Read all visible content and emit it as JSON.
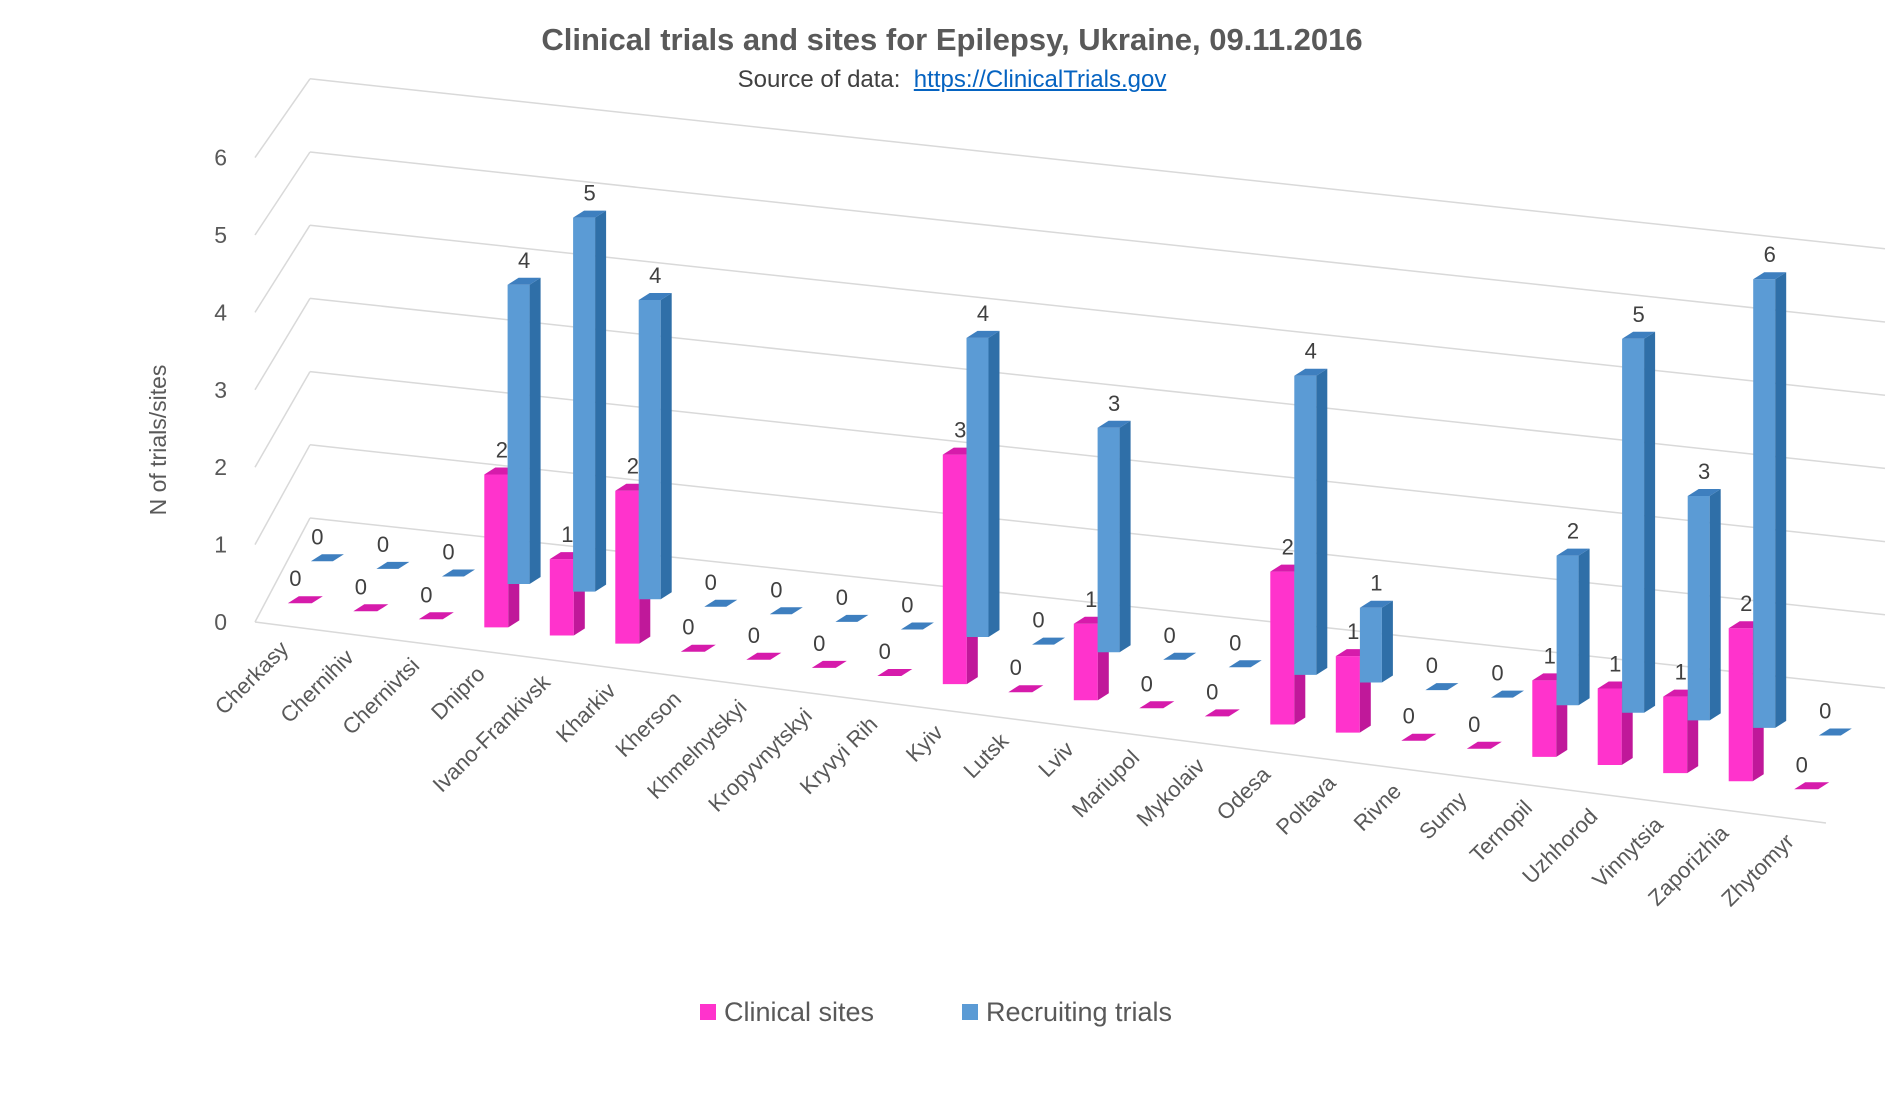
{
  "chart_data": {
    "type": "bar",
    "subtype": "3d-clustered-column",
    "title": "Clinical trials and sites for Epilepsy, Ukraine, 09.11.2016",
    "subtitle_prefix": "Source of data:",
    "subtitle_link": "https://ClinicalTrials.gov",
    "ylabel": "N of trials/sites",
    "ylim": [
      0,
      6
    ],
    "yticks": [
      "0",
      "1",
      "2",
      "3",
      "4",
      "5",
      "6"
    ],
    "grid": true,
    "legend_position": "bottom",
    "categories": [
      "Cherkasy",
      "Chernihiv",
      "Chernivtsi",
      "Dnipro",
      "Ivano-Frankivsk",
      "Kharkiv",
      "Kherson",
      "Khmelnytskyi",
      "Kropyvnytskyi",
      "Kryvyi Rih",
      "Kyiv",
      "Lutsk",
      "Lviv",
      "Mariupol",
      "Mykolaiv",
      "Odesa",
      "Poltava",
      "Rivne",
      "Sumy",
      "Ternopil",
      "Uzhhorod",
      "Vinnytsia",
      "Zaporizhia",
      "Zhytomyr"
    ],
    "series": [
      {
        "name": "Clinical sites",
        "color": "#ff33cc",
        "values": [
          0,
          0,
          0,
          2,
          1,
          2,
          0,
          0,
          0,
          0,
          3,
          0,
          1,
          0,
          0,
          2,
          1,
          0,
          0,
          1,
          1,
          1,
          2,
          0
        ]
      },
      {
        "name": "Recruiting trials",
        "color": "#5b9bd5",
        "values": [
          0,
          0,
          0,
          4,
          5,
          4,
          0,
          0,
          0,
          0,
          4,
          0,
          3,
          0,
          0,
          4,
          1,
          0,
          0,
          2,
          5,
          3,
          6,
          0
        ]
      }
    ]
  }
}
